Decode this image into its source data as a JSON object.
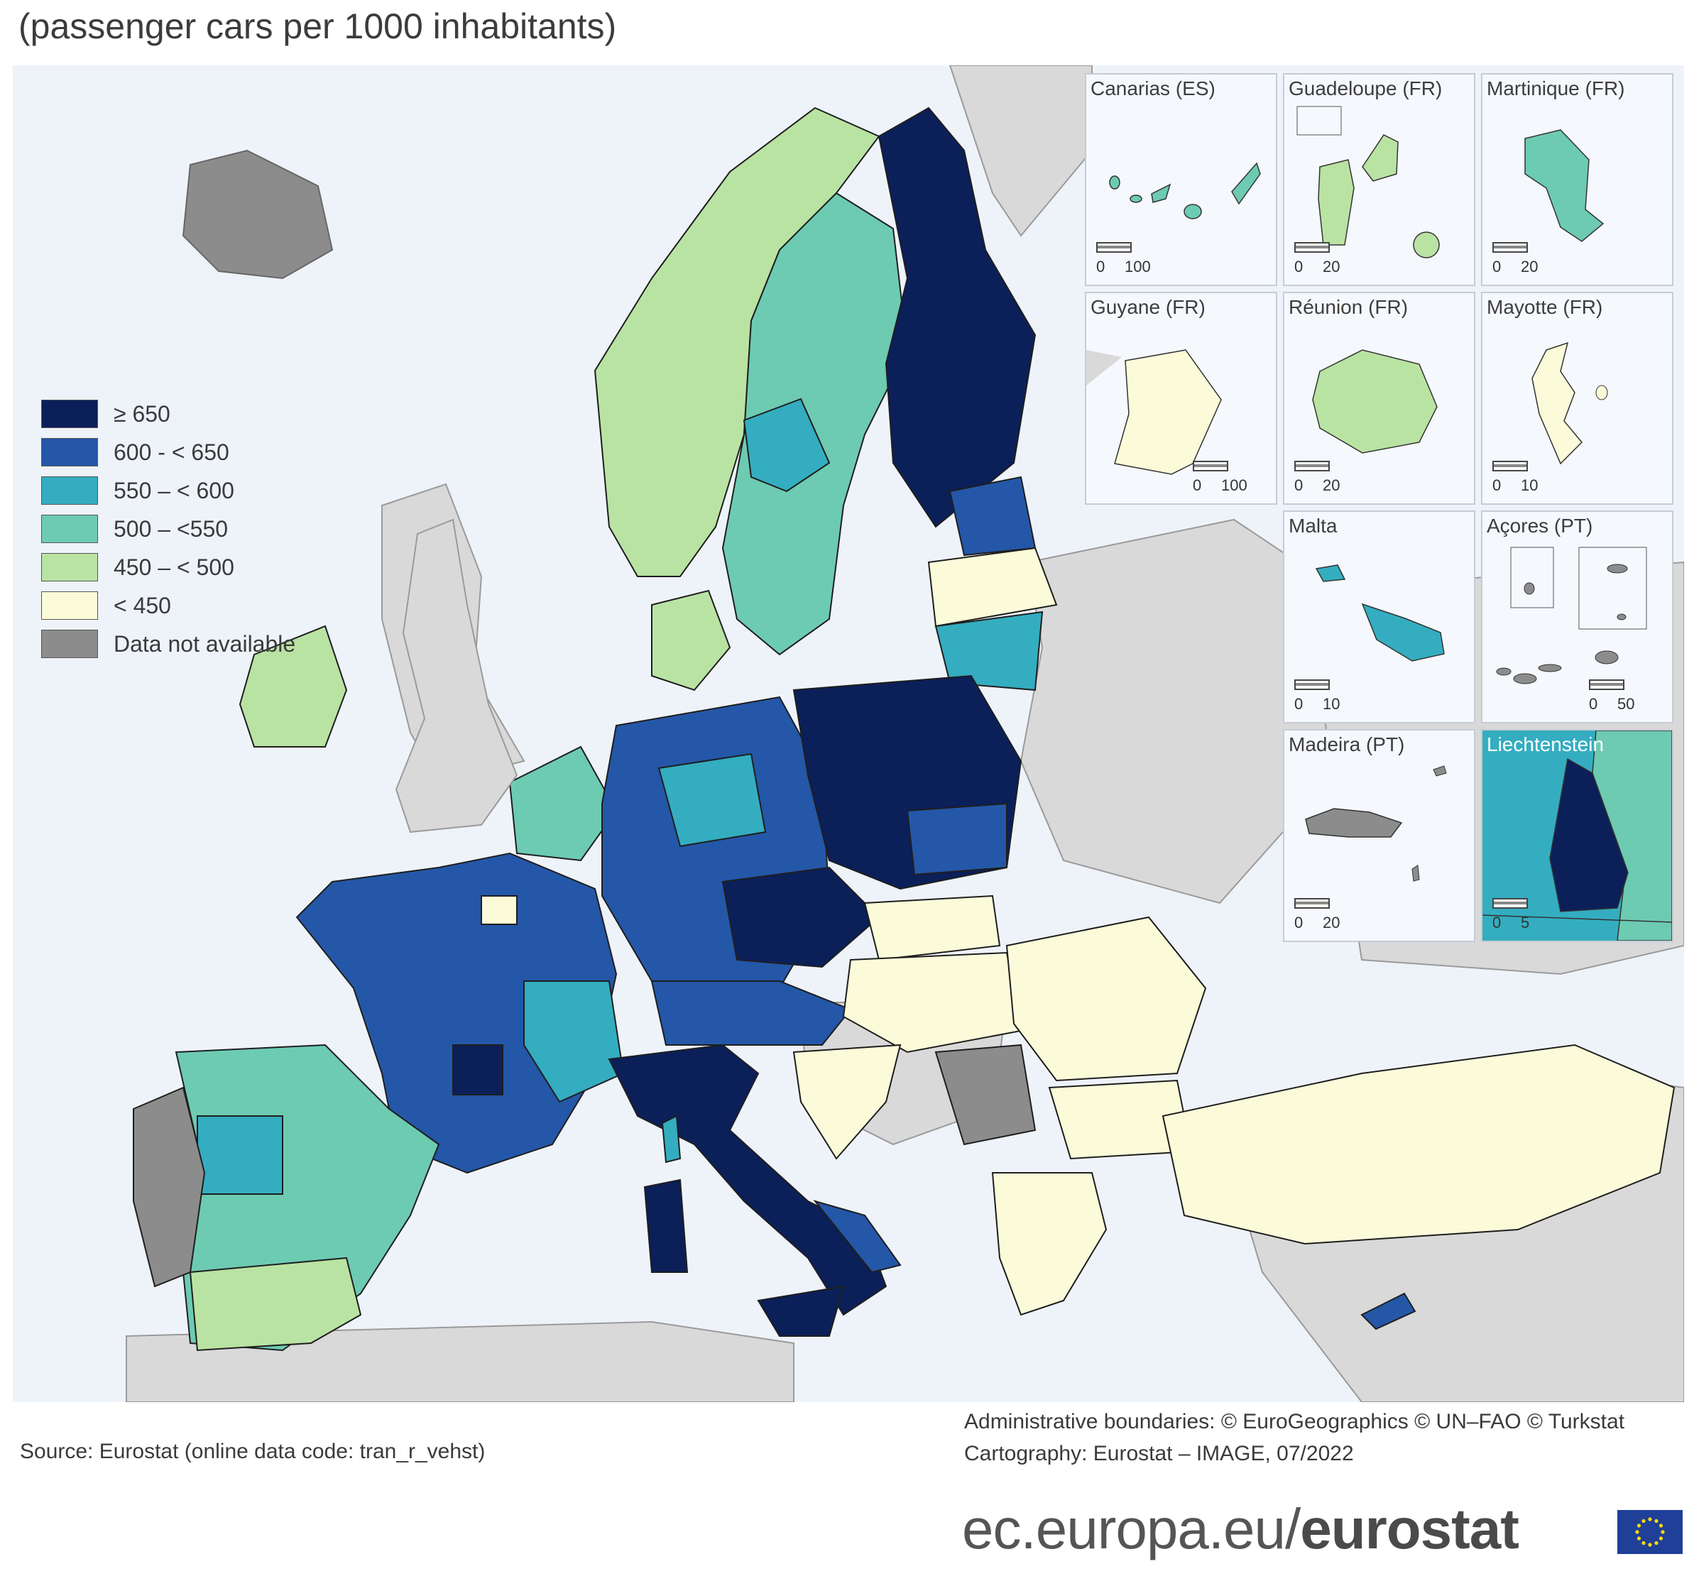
{
  "subtitle": "(passenger cars per 1000 inhabitants)",
  "legend": [
    {
      "label": "≥ 650",
      "color": "#0b1f59"
    },
    {
      "label": "600 - < 650",
      "color": "#2457a8"
    },
    {
      "label": "550 – < 600",
      "color": "#34adc0"
    },
    {
      "label": "500 – <550",
      "color": "#6dcbb2"
    },
    {
      "label": "450 – < 500",
      "color": "#b9e3a3"
    },
    {
      "label": "< 450",
      "color": "#fcfbd9"
    },
    {
      "label": "Data not available",
      "color": "#8c8c8c"
    }
  ],
  "insets": [
    {
      "title": "Canarias (ES)",
      "scale": [
        "0",
        "100"
      ]
    },
    {
      "title": "Guadeloupe (FR)",
      "scale": [
        "0",
        "20"
      ]
    },
    {
      "title": "Martinique (FR)",
      "scale": [
        "0",
        "20"
      ]
    },
    {
      "title": "Guyane (FR)",
      "scale": [
        "0",
        "100"
      ]
    },
    {
      "title": "Réunion (FR)",
      "scale": [
        "0",
        "20"
      ]
    },
    {
      "title": "Mayotte (FR)",
      "scale": [
        "0",
        "10"
      ]
    },
    {
      "title": "Malta",
      "scale": [
        "0",
        "10"
      ]
    },
    {
      "title": "Açores (PT)",
      "scale": [
        "0",
        "50"
      ]
    },
    {
      "title": "Madeira (PT)",
      "scale": [
        "0",
        "20"
      ]
    },
    {
      "title": "Liechtenstein",
      "scale": [
        "0",
        "5"
      ]
    }
  ],
  "footer": {
    "admin_line1": "Administrative boundaries: © EuroGeographics © UN–FAO © Turkstat",
    "admin_line2": "Cartography: Eurostat – IMAGE, 07/2022",
    "source": "Source: Eurostat (online data code: tran_r_vehst)",
    "brand_plain": "ec.europa.eu/",
    "brand_bold": "eurostat"
  },
  "colors": {
    "sea": "#eef3fa",
    "non_eu": "#d9d9d9",
    "border": "#1e1e1e"
  }
}
